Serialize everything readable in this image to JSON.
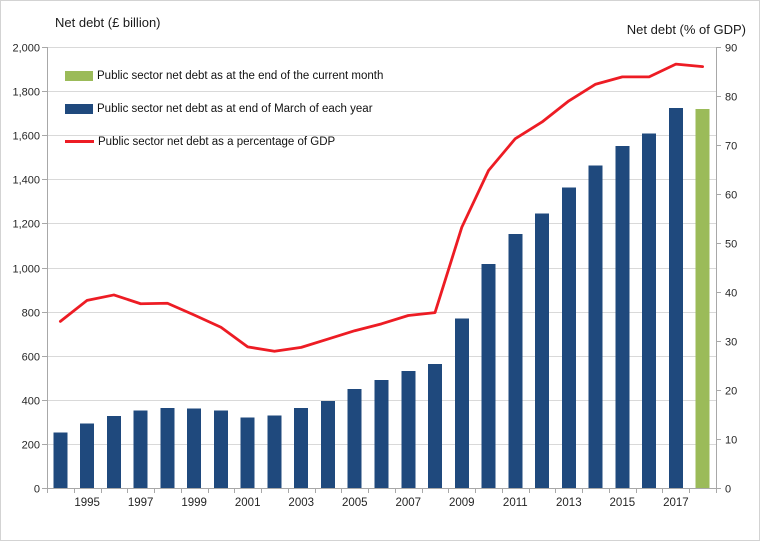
{
  "chart": {
    "left_axis_title": "Net debt (£ billion)",
    "right_axis_title": "Net debt (% of GDP)"
  },
  "legend": {
    "items": [
      {
        "label": "Public sector net debt as at the end of the current month",
        "swatch_type": "bar",
        "color": "#9bbb59"
      },
      {
        "label": "Public sector net debt as at end of March of each year",
        "swatch_type": "bar",
        "color": "#1f497d"
      },
      {
        "label": "Public sector net debt as a percentage of GDP",
        "swatch_type": "line",
        "color": "#ed1c24"
      }
    ]
  },
  "chart_data": {
    "type": "combo",
    "categories": [
      "1994",
      "1995",
      "1996",
      "1997",
      "1998",
      "1999",
      "2000",
      "2001",
      "2002",
      "2003",
      "2004",
      "2005",
      "2006",
      "2007",
      "2008",
      "2009",
      "2010",
      "2011",
      "2012",
      "2013",
      "2014",
      "2015",
      "2016",
      "2017",
      "Current month"
    ],
    "bar_march": {
      "name": "Public sector net debt as at end of March of each year",
      "color": "#1f497d",
      "axis": "left",
      "values": [
        252,
        292,
        326,
        352,
        362,
        361,
        352,
        320,
        328,
        362,
        395,
        450,
        490,
        530,
        562,
        768,
        1015,
        1151,
        1246,
        1362,
        1462,
        1552,
        1608,
        1723
      ]
    },
    "bar_current_month": {
      "name": "Public sector net debt as at the end of the current month",
      "color": "#9bbb59",
      "axis": "left",
      "category_index": 24,
      "value": 1718
    },
    "line_pct_gdp": {
      "name": "Public sector net debt as a percentage of GDP",
      "color": "#ed1c24",
      "axis": "right",
      "values": [
        34.0,
        38.3,
        39.4,
        37.6,
        37.7,
        35.3,
        32.8,
        28.8,
        27.9,
        28.7,
        30.4,
        32.1,
        33.5,
        35.2,
        35.8,
        53.2,
        64.8,
        71.3,
        74.7,
        79.0,
        82.4,
        83.9,
        83.9,
        86.5,
        86.0
      ]
    },
    "left_axis": {
      "title": "Net debt (£ billion)",
      "min": 0,
      "max": 2000,
      "tick_step": 200,
      "ticks": [
        "2,000",
        "1,800",
        "1,600",
        "1,400",
        "1,200",
        "1,000",
        "800",
        "600",
        "400",
        "200",
        "0"
      ]
    },
    "right_axis": {
      "title": "Net debt (% of GDP)",
      "min": 0,
      "max": 90,
      "tick_step": 10,
      "ticks": [
        "90",
        "80",
        "70",
        "60",
        "50",
        "40",
        "30",
        "20",
        "10",
        "0"
      ]
    },
    "x_axis": {
      "tick_labels": [
        "1995",
        "1997",
        "1999",
        "2001",
        "2003",
        "2005",
        "2007",
        "2009",
        "2011",
        "2013",
        "2015",
        "2017"
      ]
    },
    "grid": true,
    "legend_position": "top-left-inside",
    "style": {
      "grid_color": "#d9d9d9",
      "axis_color": "#a8a8a8",
      "text_color": "#262626",
      "background": "#ffffff"
    }
  }
}
